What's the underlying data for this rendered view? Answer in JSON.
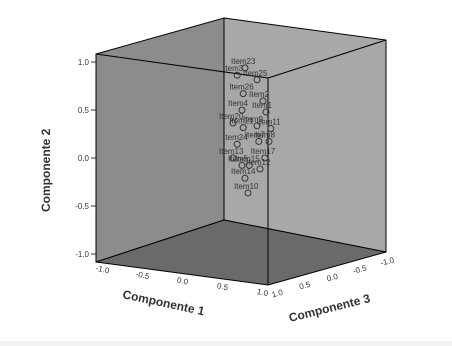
{
  "chart_data": {
    "type": "scatter",
    "title": "",
    "xlabel": "Componente 1",
    "ylabel": "Componente 2",
    "zlabel": "Componente 3",
    "y_ticks": [
      "-1.0",
      "-0.5",
      "0.0",
      "0.5",
      "1.0"
    ],
    "x_ticks": [
      "-1.0",
      "-0.5",
      "0.0",
      "0.5",
      "1.0"
    ],
    "z_ticks": [
      "1.0",
      "0.5",
      "0.0",
      "-0.5",
      "-1.0"
    ],
    "ylim": [
      -1,
      1
    ],
    "points": [
      {
        "label": "Item23",
        "x": 0.25,
        "y": 0.98
      },
      {
        "label": "Item3",
        "x": 0.12,
        "y": 0.9
      },
      {
        "label": "Item25",
        "x": 0.45,
        "y": 0.85
      },
      {
        "label": "Item26",
        "x": 0.22,
        "y": 0.7
      },
      {
        "label": "Item2",
        "x": 0.55,
        "y": 0.62
      },
      {
        "label": "Item4",
        "x": 0.2,
        "y": 0.52
      },
      {
        "label": "Item1",
        "x": 0.6,
        "y": 0.5
      },
      {
        "label": "Item20",
        "x": 0.05,
        "y": 0.38
      },
      {
        "label": "Item21",
        "x": 0.22,
        "y": 0.33
      },
      {
        "label": "Item11",
        "x": 0.68,
        "y": 0.32
      },
      {
        "label": "Item9",
        "x": 0.45,
        "y": 0.35
      },
      {
        "label": "Item8",
        "x": 0.65,
        "y": 0.18
      },
      {
        "label": "Item24",
        "x": 0.12,
        "y": 0.15
      },
      {
        "label": "Item7",
        "x": 0.48,
        "y": 0.18
      },
      {
        "label": "Item13",
        "x": 0.05,
        "y": 0.0
      },
      {
        "label": "Item17",
        "x": 0.58,
        "y": 0.0
      },
      {
        "label": "Item5",
        "x": 0.2,
        "y": -0.08
      },
      {
        "label": "Item15",
        "x": 0.32,
        "y": -0.08
      },
      {
        "label": "Item12",
        "x": 0.5,
        "y": -0.12
      },
      {
        "label": "Item14",
        "x": 0.25,
        "y": -0.22
      },
      {
        "label": "Item10",
        "x": 0.3,
        "y": -0.38
      }
    ],
    "colors": {
      "front_wall": "#8c8c8c",
      "right_wall": "#a8a8a8",
      "floor": "#6a6a6a",
      "marker": "#333333"
    }
  }
}
